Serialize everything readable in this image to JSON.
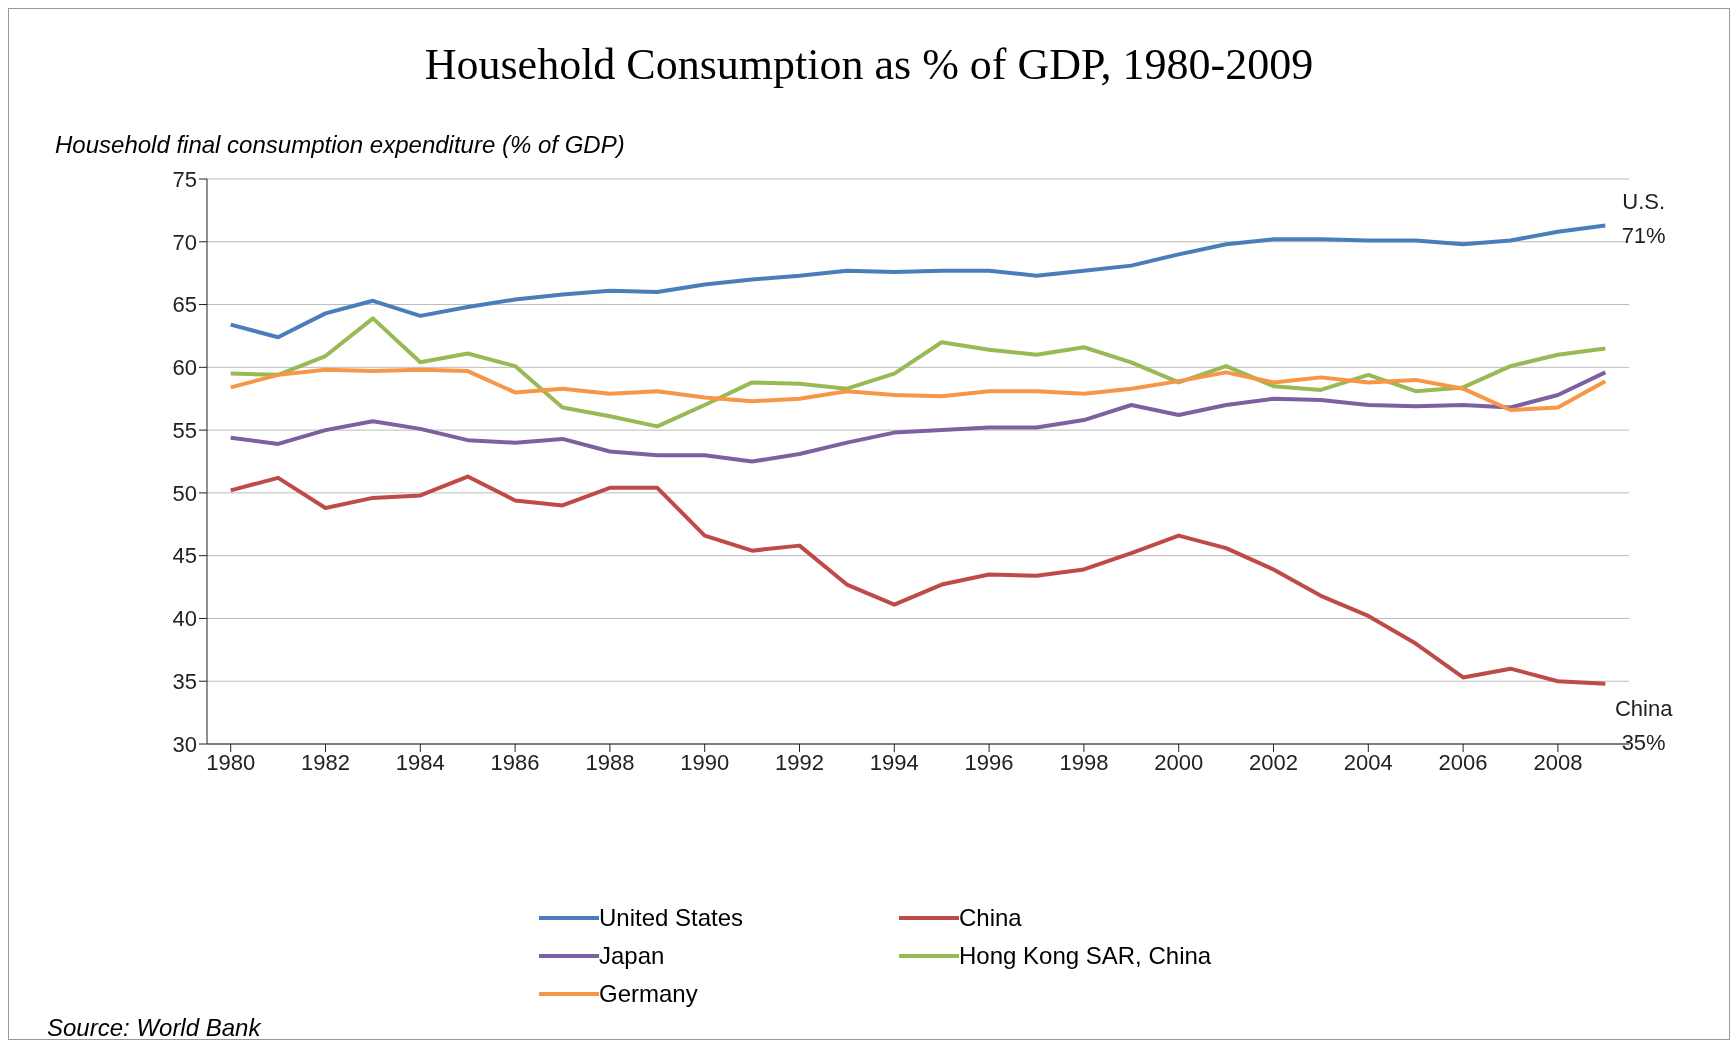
{
  "chart_data": {
    "type": "line",
    "title": "Household Consumption as  % of GDP, 1980-2009",
    "ylabel": "Household final consumption expenditure (% of GDP)",
    "x": [
      1980,
      1981,
      1982,
      1983,
      1984,
      1985,
      1986,
      1987,
      1988,
      1989,
      1990,
      1991,
      1992,
      1993,
      1994,
      1995,
      1996,
      1997,
      1998,
      1999,
      2000,
      2001,
      2002,
      2003,
      2004,
      2005,
      2006,
      2007,
      2008,
      2009
    ],
    "series": [
      {
        "name": "United States",
        "color": "#4a7ebb",
        "values": [
          63.4,
          62.4,
          64.3,
          65.3,
          64.1,
          64.8,
          65.4,
          65.8,
          66.1,
          66.0,
          66.6,
          67.0,
          67.3,
          67.7,
          67.6,
          67.7,
          67.7,
          67.3,
          67.7,
          68.1,
          69.0,
          69.8,
          70.2,
          70.2,
          70.1,
          70.1,
          69.8,
          70.1,
          70.8,
          71.3
        ]
      },
      {
        "name": "China",
        "color": "#be4b48",
        "values": [
          50.2,
          51.2,
          48.8,
          49.6,
          49.8,
          51.3,
          49.4,
          49.0,
          50.4,
          50.4,
          46.6,
          45.4,
          45.8,
          42.7,
          41.1,
          42.7,
          43.5,
          43.4,
          43.9,
          45.2,
          46.6,
          45.6,
          43.9,
          41.8,
          40.2,
          38.0,
          35.3,
          36.0,
          35.0,
          34.8
        ]
      },
      {
        "name": "Japan",
        "color": "#7d60a0",
        "values": [
          54.4,
          53.9,
          55.0,
          55.7,
          55.1,
          54.2,
          54.0,
          54.3,
          53.3,
          53.0,
          53.0,
          52.5,
          53.1,
          54.0,
          54.8,
          55.0,
          55.2,
          55.2,
          55.8,
          57.0,
          56.2,
          57.0,
          57.5,
          57.4,
          57.0,
          56.9,
          57.0,
          56.8,
          57.8,
          59.6
        ]
      },
      {
        "name": "Hong Kong SAR, China",
        "color": "#98b954",
        "values": [
          59.5,
          59.4,
          60.9,
          63.9,
          60.4,
          61.1,
          60.1,
          56.8,
          56.1,
          55.3,
          57.0,
          58.8,
          58.7,
          58.3,
          59.5,
          62.0,
          61.4,
          61.0,
          61.6,
          60.4,
          58.8,
          60.1,
          58.5,
          58.2,
          59.4,
          58.1,
          58.4,
          60.1,
          61.0,
          61.5
        ]
      },
      {
        "name": "Germany",
        "color": "#f79646",
        "values": [
          58.4,
          59.4,
          59.8,
          59.7,
          59.8,
          59.7,
          58.0,
          58.3,
          57.9,
          58.1,
          57.6,
          57.3,
          57.5,
          58.1,
          57.8,
          57.7,
          58.1,
          58.1,
          57.9,
          58.3,
          58.9,
          59.6,
          58.8,
          59.2,
          58.8,
          59.0,
          58.3,
          56.6,
          56.8,
          58.9
        ]
      }
    ],
    "xlim": [
      1979.5,
      2009.5
    ],
    "xticks": [
      1980,
      1982,
      1984,
      1986,
      1988,
      1990,
      1992,
      1994,
      1996,
      1998,
      2000,
      2002,
      2004,
      2006,
      2008
    ],
    "ylim": [
      30,
      75
    ],
    "yticks": [
      30,
      35,
      40,
      45,
      50,
      55,
      60,
      65,
      70,
      75
    ],
    "grid": "y",
    "legend": "bottom",
    "marker": "none",
    "line_style": "solid",
    "annotations": [
      {
        "text": "U.S.\n71%",
        "x": 2009,
        "y": 71.3
      },
      {
        "text": "China\n35%",
        "x": 2009,
        "y": 34.8
      },
      "Source:  World Bank"
    ]
  }
}
